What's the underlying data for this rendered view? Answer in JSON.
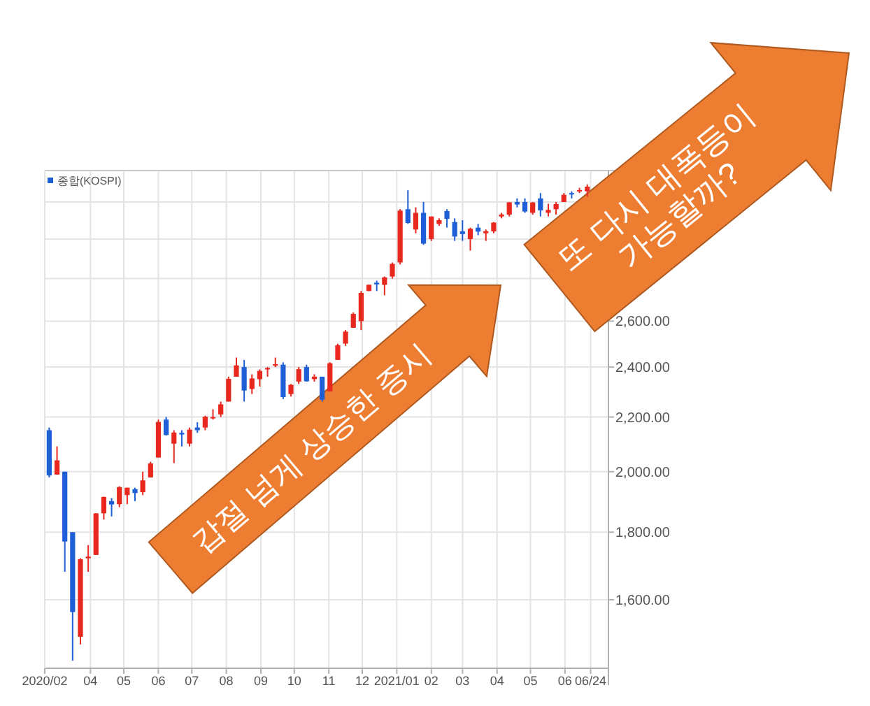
{
  "chart_data": {
    "type": "candlestick",
    "log": "y",
    "grid": true,
    "legend": "top left",
    "annotations": [
      "갑절 넘게 상승한 증시",
      "또 다시 대폭등이 가능할까?"
    ],
    "xlim": [
      "2020-02-20",
      "2021-07-10"
    ],
    "ylim": [
      1420,
      3380
    ],
    "xticks": [
      {
        "value": "2020-02-20",
        "label": "2020/02"
      },
      {
        "value": "2020-04-01",
        "label": "04"
      },
      {
        "value": "2020-05-01",
        "label": "05"
      },
      {
        "value": "2020-06-01",
        "label": "06"
      },
      {
        "value": "2020-07-01",
        "label": "07"
      },
      {
        "value": "2020-08-01",
        "label": "08"
      },
      {
        "value": "2020-09-01",
        "label": "09"
      },
      {
        "value": "2020-10-01",
        "label": "10"
      },
      {
        "value": "2020-11-01",
        "label": "11"
      },
      {
        "value": "2020-12-01",
        "label": "12"
      },
      {
        "value": "2021-01-01",
        "label": "2021/01"
      },
      {
        "value": "2021-02-01",
        "label": "02"
      },
      {
        "value": "2021-03-01",
        "label": "03"
      },
      {
        "value": "2021-04-01",
        "label": "04"
      },
      {
        "value": "2021-05-01",
        "label": "05"
      },
      {
        "value": "2021-06-01",
        "label": "06"
      },
      {
        "value": "2021-06-24",
        "label": "06/24"
      }
    ],
    "yticks": [
      {
        "value": 1600,
        "label": "1,600.00"
      },
      {
        "value": 1800,
        "label": "1,800.00"
      },
      {
        "value": 2000,
        "label": "2,000.00"
      },
      {
        "value": 2200,
        "label": "2,200.00"
      },
      {
        "value": 2400,
        "label": "2,400.00"
      },
      {
        "value": 2600,
        "label": "2,600.00"
      },
      {
        "value": 2800,
        "label": null
      },
      {
        "value": 3000,
        "label": null
      },
      {
        "value": 3200,
        "label": null
      }
    ],
    "x": [
      "2020-02-24",
      "2020-03-02",
      "2020-03-09",
      "2020-03-16",
      "2020-03-23",
      "2020-03-30",
      "2020-04-06",
      "2020-04-13",
      "2020-04-20",
      "2020-04-27",
      "2020-05-04",
      "2020-05-11",
      "2020-05-18",
      "2020-05-25",
      "2020-06-01",
      "2020-06-08",
      "2020-06-15",
      "2020-06-22",
      "2020-06-29",
      "2020-07-06",
      "2020-07-13",
      "2020-07-20",
      "2020-07-27",
      "2020-08-03",
      "2020-08-10",
      "2020-08-17",
      "2020-08-24",
      "2020-08-31",
      "2020-09-07",
      "2020-09-14",
      "2020-09-21",
      "2020-09-28",
      "2020-10-05",
      "2020-10-12",
      "2020-10-19",
      "2020-10-26",
      "2020-11-02",
      "2020-11-09",
      "2020-11-16",
      "2020-11-23",
      "2020-11-30",
      "2020-12-07",
      "2020-12-14",
      "2020-12-21",
      "2020-12-28",
      "2021-01-04",
      "2021-01-11",
      "2021-01-18",
      "2021-01-25",
      "2021-02-01",
      "2021-02-08",
      "2021-02-15",
      "2021-02-22",
      "2021-03-01",
      "2021-03-08",
      "2021-03-15",
      "2021-03-22",
      "2021-03-29",
      "2021-04-05",
      "2021-04-12",
      "2021-04-19",
      "2021-04-26",
      "2021-05-03",
      "2021-05-10",
      "2021-05-17",
      "2021-05-24",
      "2021-05-31",
      "2021-06-07",
      "2021-06-14",
      "2021-06-21"
    ],
    "series": [
      {
        "name": "종합(KOSPI)",
        "ohlc": [
          [
            2150,
            2160,
            1980,
            1987
          ],
          [
            1990,
            2090,
            1990,
            2040
          ],
          [
            2000,
            2000,
            1680,
            1771
          ],
          [
            1800,
            1800,
            1439,
            1566
          ],
          [
            1500,
            1720,
            1480,
            1717
          ],
          [
            1720,
            1760,
            1680,
            1725
          ],
          [
            1730,
            1860,
            1730,
            1860
          ],
          [
            1860,
            1915,
            1840,
            1914
          ],
          [
            1900,
            1910,
            1850,
            1889
          ],
          [
            1890,
            1950,
            1880,
            1947
          ],
          [
            1920,
            1945,
            1890,
            1945
          ],
          [
            1940,
            1945,
            1900,
            1927
          ],
          [
            1930,
            2000,
            1920,
            1970
          ],
          [
            1980,
            2035,
            1980,
            2029
          ],
          [
            2050,
            2190,
            2050,
            2181
          ],
          [
            2190,
            2200,
            2130,
            2132
          ],
          [
            2100,
            2150,
            2030,
            2141
          ],
          [
            2140,
            2150,
            2090,
            2134
          ],
          [
            2100,
            2160,
            2090,
            2152
          ],
          [
            2160,
            2180,
            2140,
            2150
          ],
          [
            2160,
            2205,
            2150,
            2201
          ],
          [
            2200,
            2230,
            2190,
            2200
          ],
          [
            2210,
            2260,
            2200,
            2249
          ],
          [
            2260,
            2360,
            2260,
            2351
          ],
          [
            2360,
            2440,
            2360,
            2407
          ],
          [
            2400,
            2430,
            2260,
            2304
          ],
          [
            2310,
            2370,
            2290,
            2353
          ],
          [
            2350,
            2390,
            2320,
            2384
          ],
          [
            2390,
            2400,
            2360,
            2396
          ],
          [
            2410,
            2440,
            2400,
            2412
          ],
          [
            2410,
            2420,
            2270,
            2278
          ],
          [
            2290,
            2330,
            2280,
            2327
          ],
          [
            2340,
            2400,
            2330,
            2391
          ],
          [
            2400,
            2410,
            2340,
            2341
          ],
          [
            2350,
            2370,
            2340,
            2360
          ],
          [
            2360,
            2360,
            2260,
            2267
          ],
          [
            2300,
            2420,
            2300,
            2416
          ],
          [
            2430,
            2500,
            2430,
            2493
          ],
          [
            2500,
            2560,
            2490,
            2553
          ],
          [
            2570,
            2640,
            2570,
            2633
          ],
          [
            2600,
            2740,
            2560,
            2731
          ],
          [
            2740,
            2770,
            2740,
            2770
          ],
          [
            2780,
            2790,
            2740,
            2772
          ],
          [
            2770,
            2810,
            2720,
            2806
          ],
          [
            2810,
            2880,
            2800,
            2873
          ],
          [
            2880,
            3160,
            2870,
            3152
          ],
          [
            3160,
            3266,
            3080,
            3085
          ],
          [
            3050,
            3170,
            3030,
            3140
          ],
          [
            3140,
            3200,
            2970,
            2976
          ],
          [
            3000,
            3120,
            2990,
            3120
          ],
          [
            3080,
            3110,
            3070,
            3100
          ],
          [
            3150,
            3160,
            3060,
            3107
          ],
          [
            3090,
            3110,
            2990,
            3013
          ],
          [
            3040,
            3100,
            2990,
            3026
          ],
          [
            3000,
            3060,
            2940,
            3054
          ],
          [
            3060,
            3080,
            3020,
            3039
          ],
          [
            3030,
            3050,
            2990,
            3041
          ],
          [
            3040,
            3090,
            3030,
            3087
          ],
          [
            3120,
            3140,
            3110,
            3131
          ],
          [
            3130,
            3200,
            3120,
            3198
          ],
          [
            3200,
            3220,
            3170,
            3186
          ],
          [
            3200,
            3220,
            3140,
            3147
          ],
          [
            3140,
            3200,
            3130,
            3197
          ],
          [
            3220,
            3250,
            3120,
            3153
          ],
          [
            3140,
            3190,
            3120,
            3156
          ],
          [
            3160,
            3200,
            3130,
            3188
          ],
          [
            3200,
            3250,
            3200,
            3240
          ],
          [
            3250,
            3260,
            3220,
            3249
          ],
          [
            3260,
            3280,
            3250,
            3267
          ],
          [
            3260,
            3300,
            3230,
            3286
          ]
        ],
        "colors": [
          "#1e5fd8",
          "#e8281e",
          "#1e5fd8",
          "#1e5fd8",
          "#e8281e",
          "#e8281e",
          "#e8281e",
          "#e8281e",
          "#1e5fd8",
          "#e8281e",
          "#e8281e",
          "#1e5fd8",
          "#e8281e",
          "#e8281e",
          "#e8281e",
          "#1e5fd8",
          "#e8281e",
          "#1e5fd8",
          "#e8281e",
          "#1e5fd8",
          "#e8281e",
          "#e8281e",
          "#e8281e",
          "#e8281e",
          "#e8281e",
          "#1e5fd8",
          "#e8281e",
          "#e8281e",
          "#e8281e",
          "#e8281e",
          "#1e5fd8",
          "#e8281e",
          "#e8281e",
          "#1e5fd8",
          "#e8281e",
          "#1e5fd8",
          "#e8281e",
          "#e8281e",
          "#e8281e",
          "#e8281e",
          "#e8281e",
          "#e8281e",
          "#1e5fd8",
          "#e8281e",
          "#e8281e",
          "#e8281e",
          "#1e5fd8",
          "#e8281e",
          "#1e5fd8",
          "#e8281e",
          "#e8281e",
          "#1e5fd8",
          "#1e5fd8",
          "#1e5fd8",
          "#e8281e",
          "#1e5fd8",
          "#e8281e",
          "#e8281e",
          "#e8281e",
          "#e8281e",
          "#1e5fd8",
          "#1e5fd8",
          "#e8281e",
          "#1e5fd8",
          "#e8281e",
          "#e8281e",
          "#e8281e",
          "#1e5fd8",
          "#e8281e",
          "#e8281e"
        ]
      }
    ]
  }
}
